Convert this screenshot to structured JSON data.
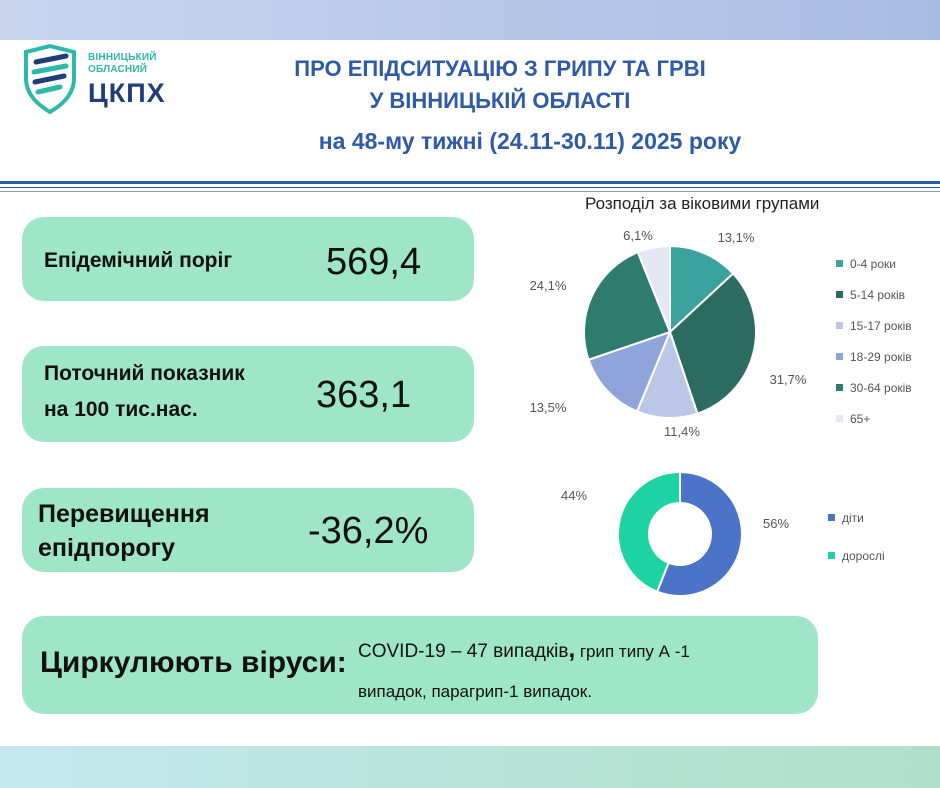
{
  "logo": {
    "line1": "ВІННИЦЬКИЙ",
    "line2": "ОБЛАСНИЙ",
    "name": "ЦКПХ",
    "icon": "shield-icon"
  },
  "header": {
    "title_line1": "ПРО ЕПІДСИТУАЦІЮ З ГРИПУ ТА ГРВІ",
    "title_line2": "У ВІННИЦЬКІЙ ОБЛАСТІ",
    "subtitle": "на 48-му тижні (24.11-30.11) 2025 року"
  },
  "stats": {
    "threshold_label": "Епідемічний поріг",
    "threshold_value": "569,4",
    "current_label_line1": "Поточний показник",
    "current_label_line2": "на 100 тис.нас.",
    "current_value": "363,1",
    "excess_label_line1": "Перевищення",
    "excess_label_line2": "епідпорогу",
    "excess_value": "-36,2%"
  },
  "viruses": {
    "label": "Циркулюють віруси:",
    "covid": "COVID-19 – 47 випадків",
    "comma": ",",
    "rest_line1": " грип типу А -1",
    "rest_line2": "випадок, парагрип-1 випадок."
  },
  "colors": {
    "accent": "#2e5aa8",
    "box": "#9fe6c8",
    "age_slices": [
      "#3aa39d",
      "#2b6b60",
      "#bcc7e8",
      "#8fa4da",
      "#2d7c6e",
      "#e3e8f4"
    ],
    "donut": [
      "#4b74c9",
      "#1ed3a3"
    ]
  },
  "chart_data": [
    {
      "type": "pie",
      "title": "Розподіл за віковими групами",
      "categories": [
        "0-4 роки",
        "5-14 років",
        "15-17 років",
        "18-29 років",
        "30-64 років",
        "65+"
      ],
      "values": [
        13.1,
        31.7,
        11.4,
        13.5,
        24.1,
        6.1
      ],
      "labels": [
        "13,1%",
        "31,7%",
        "11,4%",
        "13,5%",
        "24,1%",
        "6,1%"
      ],
      "legend": "right"
    },
    {
      "type": "pie",
      "title": "",
      "categories": [
        "діти",
        "дорослі"
      ],
      "values": [
        56,
        44
      ],
      "labels": [
        "56%",
        "44%"
      ],
      "legend": "right"
    }
  ]
}
